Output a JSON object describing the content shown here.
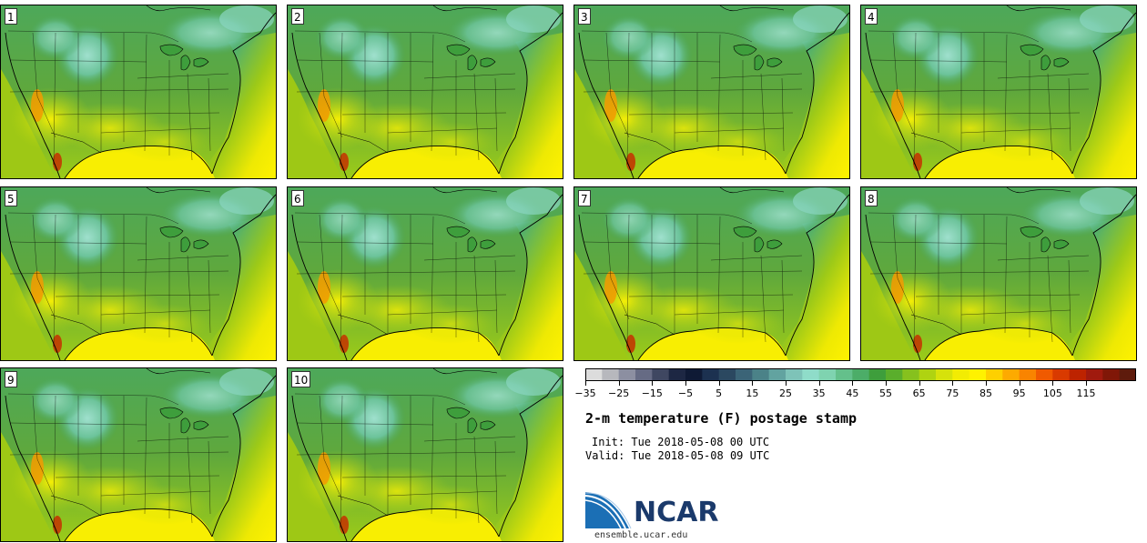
{
  "panels": [
    {
      "label": "1"
    },
    {
      "label": "2"
    },
    {
      "label": "3"
    },
    {
      "label": "4"
    },
    {
      "label": "5"
    },
    {
      "label": "6"
    },
    {
      "label": "7"
    },
    {
      "label": "8"
    },
    {
      "label": "9"
    },
    {
      "label": "10"
    }
  ],
  "colorbar": {
    "colors": [
      "#dcdcdc",
      "#b7b8bd",
      "#8c8fa1",
      "#666b84",
      "#3f4761",
      "#1d2743",
      "#0f1a35",
      "#1c3150",
      "#2b4860",
      "#3b6477",
      "#4b8288",
      "#62a3a0",
      "#7ec3b8",
      "#8fdcc9",
      "#7fd3b0",
      "#64c08b",
      "#4cad68",
      "#3e9e3c",
      "#5aae2c",
      "#86c11e",
      "#afd311",
      "#d6e20b",
      "#f2ec03",
      "#fff200",
      "#fed000",
      "#fdaa00",
      "#f98400",
      "#f05a00",
      "#d93a00",
      "#bd2300",
      "#a01a0e",
      "#801707",
      "#5e1b0c"
    ],
    "ticks": [
      "−35",
      "−25",
      "−15",
      "−5",
      "5",
      "15",
      "25",
      "35",
      "45",
      "55",
      "65",
      "75",
      "85",
      "95",
      "105",
      "115"
    ]
  },
  "title": "2-m temperature (F) postage stamp",
  "init_line": "Init: Tue 2018-05-08 00 UTC",
  "valid_line": "Valid: Tue 2018-05-08 09 UTC",
  "logo_text": "NCAR",
  "site": "ensemble.ucar.edu"
}
